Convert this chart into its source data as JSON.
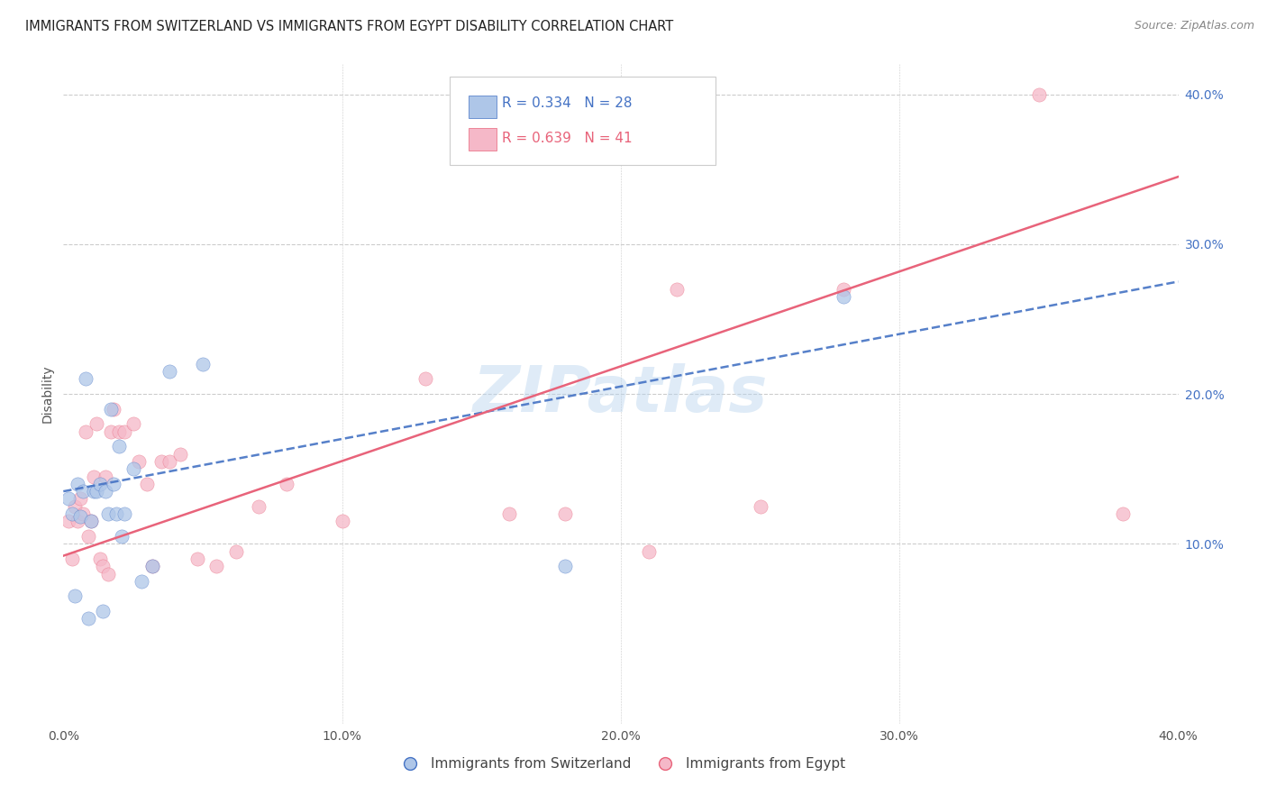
{
  "title": "IMMIGRANTS FROM SWITZERLAND VS IMMIGRANTS FROM EGYPT DISABILITY CORRELATION CHART",
  "source": "Source: ZipAtlas.com",
  "ylabel": "Disability",
  "xlim": [
    0.0,
    0.4
  ],
  "ylim": [
    -0.02,
    0.42
  ],
  "xtick_vals": [
    0.0,
    0.1,
    0.2,
    0.3,
    0.4
  ],
  "xtick_labels": [
    "0.0%",
    "10.0%",
    "20.0%",
    "30.0%",
    "40.0%"
  ],
  "ytick_vals_right": [
    0.1,
    0.2,
    0.3,
    0.4
  ],
  "ytick_labels_right": [
    "10.0%",
    "20.0%",
    "30.0%",
    "40.0%"
  ],
  "watermark": "ZIPatlas",
  "blue_fill": "#aec6e8",
  "pink_fill": "#f5b8c8",
  "blue_edge": "#4472c4",
  "pink_edge": "#e8637a",
  "blue_line": "#4472c4",
  "pink_line": "#e8637a",
  "swiss_x": [
    0.002,
    0.003,
    0.004,
    0.005,
    0.006,
    0.007,
    0.008,
    0.009,
    0.01,
    0.011,
    0.012,
    0.013,
    0.014,
    0.015,
    0.016,
    0.017,
    0.018,
    0.019,
    0.02,
    0.021,
    0.022,
    0.025,
    0.028,
    0.032,
    0.038,
    0.05,
    0.18,
    0.28
  ],
  "swiss_y": [
    0.13,
    0.12,
    0.065,
    0.14,
    0.118,
    0.135,
    0.21,
    0.05,
    0.115,
    0.135,
    0.135,
    0.14,
    0.055,
    0.135,
    0.12,
    0.19,
    0.14,
    0.12,
    0.165,
    0.105,
    0.12,
    0.15,
    0.075,
    0.085,
    0.215,
    0.22,
    0.085,
    0.265
  ],
  "egypt_x": [
    0.002,
    0.003,
    0.004,
    0.005,
    0.006,
    0.007,
    0.008,
    0.009,
    0.01,
    0.011,
    0.012,
    0.013,
    0.014,
    0.015,
    0.016,
    0.017,
    0.018,
    0.02,
    0.022,
    0.025,
    0.027,
    0.03,
    0.032,
    0.035,
    0.038,
    0.042,
    0.048,
    0.055,
    0.062,
    0.07,
    0.08,
    0.1,
    0.13,
    0.16,
    0.18,
    0.21,
    0.22,
    0.25,
    0.28,
    0.35,
    0.38
  ],
  "egypt_y": [
    0.115,
    0.09,
    0.125,
    0.115,
    0.13,
    0.12,
    0.175,
    0.105,
    0.115,
    0.145,
    0.18,
    0.09,
    0.085,
    0.145,
    0.08,
    0.175,
    0.19,
    0.175,
    0.175,
    0.18,
    0.155,
    0.14,
    0.085,
    0.155,
    0.155,
    0.16,
    0.09,
    0.085,
    0.095,
    0.125,
    0.14,
    0.115,
    0.21,
    0.12,
    0.12,
    0.095,
    0.27,
    0.125,
    0.27,
    0.4,
    0.12
  ],
  "grid_color": "#cccccc",
  "title_color": "#222222",
  "source_color": "#888888",
  "tick_color": "#555555",
  "right_tick_color": "#4472c4"
}
